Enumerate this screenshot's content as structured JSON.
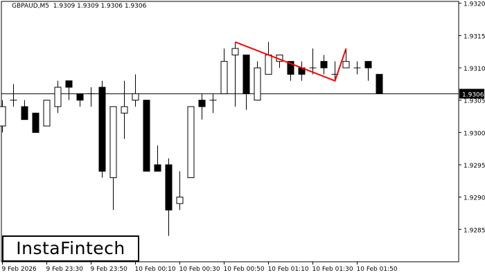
{
  "header": {
    "symbol": "GBPAUD,M5",
    "ohlc": "1.9309 1.9309 1.9306 1.9306"
  },
  "logo": {
    "text": "InstaFintech"
  },
  "colors": {
    "bull_body": "#ffffff",
    "bear_body": "#000000",
    "pattern_line": "#ff0000",
    "price_label_bg": "#000000"
  },
  "chart_data": {
    "type": "candlestick",
    "symbol": "GBPAUD",
    "timeframe": "M5",
    "ylim": [
      1.9281,
      1.9321
    ],
    "y_ticks": [
      "1.9320",
      "1.9315",
      "1.9310",
      "1.9305",
      "1.9300",
      "1.9295",
      "1.9290",
      "1.9285"
    ],
    "x_ticks": [
      {
        "label": "9 Feb 2026",
        "candle": 0
      },
      {
        "label": "9 Feb 23:30",
        "candle": 4
      },
      {
        "label": "9 Feb 23:50",
        "candle": 8
      },
      {
        "label": "10 Feb 00:10",
        "candle": 12
      },
      {
        "label": "10 Feb 00:30",
        "candle": 16
      },
      {
        "label": "10 Feb 00:50",
        "candle": 20
      },
      {
        "label": "10 Feb 01:10",
        "candle": 24
      },
      {
        "label": "10 Feb 01:30",
        "candle": 28
      },
      {
        "label": "10 Feb 01:50",
        "candle": 32
      }
    ],
    "candles": [
      [
        1.9301,
        1.9305,
        1.93,
        1.9304
      ],
      [
        1.9305,
        1.93075,
        1.9304,
        1.9305
      ],
      [
        1.9304,
        1.9305,
        1.9302,
        1.9302
      ],
      [
        1.9303,
        1.9303,
        1.93,
        1.93
      ],
      [
        1.9301,
        1.9305,
        1.9301,
        1.9305
      ],
      [
        1.9304,
        1.9308,
        1.9303,
        1.9307
      ],
      [
        1.9308,
        1.9308,
        1.9305,
        1.9307
      ],
      [
        1.9306,
        1.9306,
        1.9304,
        1.9305
      ],
      [
        1.9306,
        1.9307,
        1.9304,
        1.9306
      ],
      [
        1.9307,
        1.9308,
        1.9293,
        1.9294
      ],
      [
        1.9293,
        1.9304,
        1.9288,
        1.9304
      ],
      [
        1.9303,
        1.9308,
        1.9299,
        1.9304
      ],
      [
        1.9305,
        1.9309,
        1.9304,
        1.9306
      ],
      [
        1.9305,
        1.9305,
        1.9294,
        1.9294
      ],
      [
        1.9295,
        1.9298,
        1.9294,
        1.9294
      ],
      [
        1.9295,
        1.9296,
        1.9284,
        1.9288
      ],
      [
        1.9289,
        1.9294,
        1.9288,
        1.929
      ],
      [
        1.9293,
        1.9304,
        1.9293,
        1.9304
      ],
      [
        1.9305,
        1.9306,
        1.9302,
        1.9304
      ],
      [
        1.9305,
        1.9306,
        1.9303,
        1.9305
      ],
      [
        1.9306,
        1.9313,
        1.9306,
        1.9311
      ],
      [
        1.9312,
        1.9314,
        1.9304,
        1.9313
      ],
      [
        1.9312,
        1.9312,
        1.93035,
        1.9306
      ],
      [
        1.9305,
        1.9311,
        1.9305,
        1.931
      ],
      [
        1.9309,
        1.9314,
        1.9309,
        1.9312
      ],
      [
        1.9311,
        1.9312,
        1.931,
        1.9312
      ],
      [
        1.9311,
        1.9311,
        1.9308,
        1.9309
      ],
      [
        1.931,
        1.9311,
        1.9308,
        1.9309
      ],
      [
        1.931,
        1.9313,
        1.9309,
        1.931
      ],
      [
        1.9311,
        1.9312,
        1.9309,
        1.931
      ],
      [
        1.9309,
        1.9311,
        1.9308,
        1.9309
      ],
      [
        1.931,
        1.9313,
        1.931,
        1.9311
      ],
      [
        1.931,
        1.9311,
        1.9309,
        1.931
      ],
      [
        1.9311,
        1.9311,
        1.9308,
        1.931
      ],
      [
        1.9309,
        1.9309,
        1.9306,
        1.9306
      ]
    ],
    "candle_fields": [
      "open",
      "high",
      "low",
      "close"
    ],
    "current_price": {
      "value": 1.9306,
      "label": "1.9306"
    },
    "pattern_line": [
      {
        "candle": 21,
        "price": 1.9314
      },
      {
        "candle": 30,
        "price": 1.9308
      },
      {
        "candle": 31,
        "price": 1.9313
      }
    ],
    "grid": false
  }
}
